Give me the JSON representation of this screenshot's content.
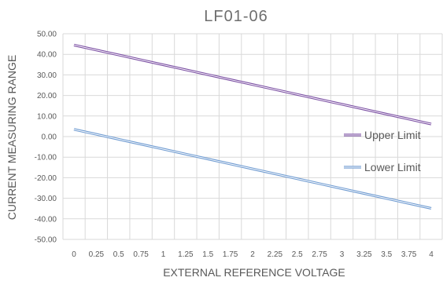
{
  "chart_data": {
    "type": "line",
    "title": "LF01-06",
    "xlabel": "EXTERNAL REFERENCE VOLTAGE",
    "ylabel": "CURRENT MEASURING RANGE",
    "x": [
      0,
      0.25,
      0.5,
      0.75,
      1,
      1.25,
      1.5,
      1.75,
      2,
      2.25,
      2.5,
      2.75,
      3,
      3.25,
      3.5,
      3.75,
      4
    ],
    "x_tick_labels": [
      "0",
      "0.25",
      "0.5",
      "0.75",
      "1",
      "1.25",
      "1.5",
      "1.75",
      "2",
      "2.25",
      "2.5",
      "2.75",
      "3",
      "3.25",
      "3.5",
      "3.75",
      "4"
    ],
    "ylim": [
      -50,
      50
    ],
    "y_tick_labels": [
      "50.00",
      "40.00",
      "30.00",
      "20.00",
      "10.00",
      "0.00",
      "-10.00",
      "-20.00",
      "-30.00",
      "-40.00",
      "-50.00"
    ],
    "grid": true,
    "legend_position": "right",
    "series": [
      {
        "name": "Upper Limit",
        "color": "#7b4fa3",
        "values": [
          44.5,
          42.1,
          39.7,
          37.3,
          34.9,
          32.5,
          30.1,
          27.7,
          25.3,
          22.9,
          20.5,
          18.1,
          15.7,
          13.3,
          10.9,
          8.5,
          6.1
        ]
      },
      {
        "name": "Lower Limit",
        "color": "#6f9bd1",
        "values": [
          3.5,
          1.1,
          -1.3,
          -3.7,
          -6.1,
          -8.5,
          -10.9,
          -13.3,
          -15.7,
          -18.1,
          -20.5,
          -22.9,
          -25.3,
          -27.7,
          -30.1,
          -32.5,
          -34.9
        ]
      }
    ]
  }
}
